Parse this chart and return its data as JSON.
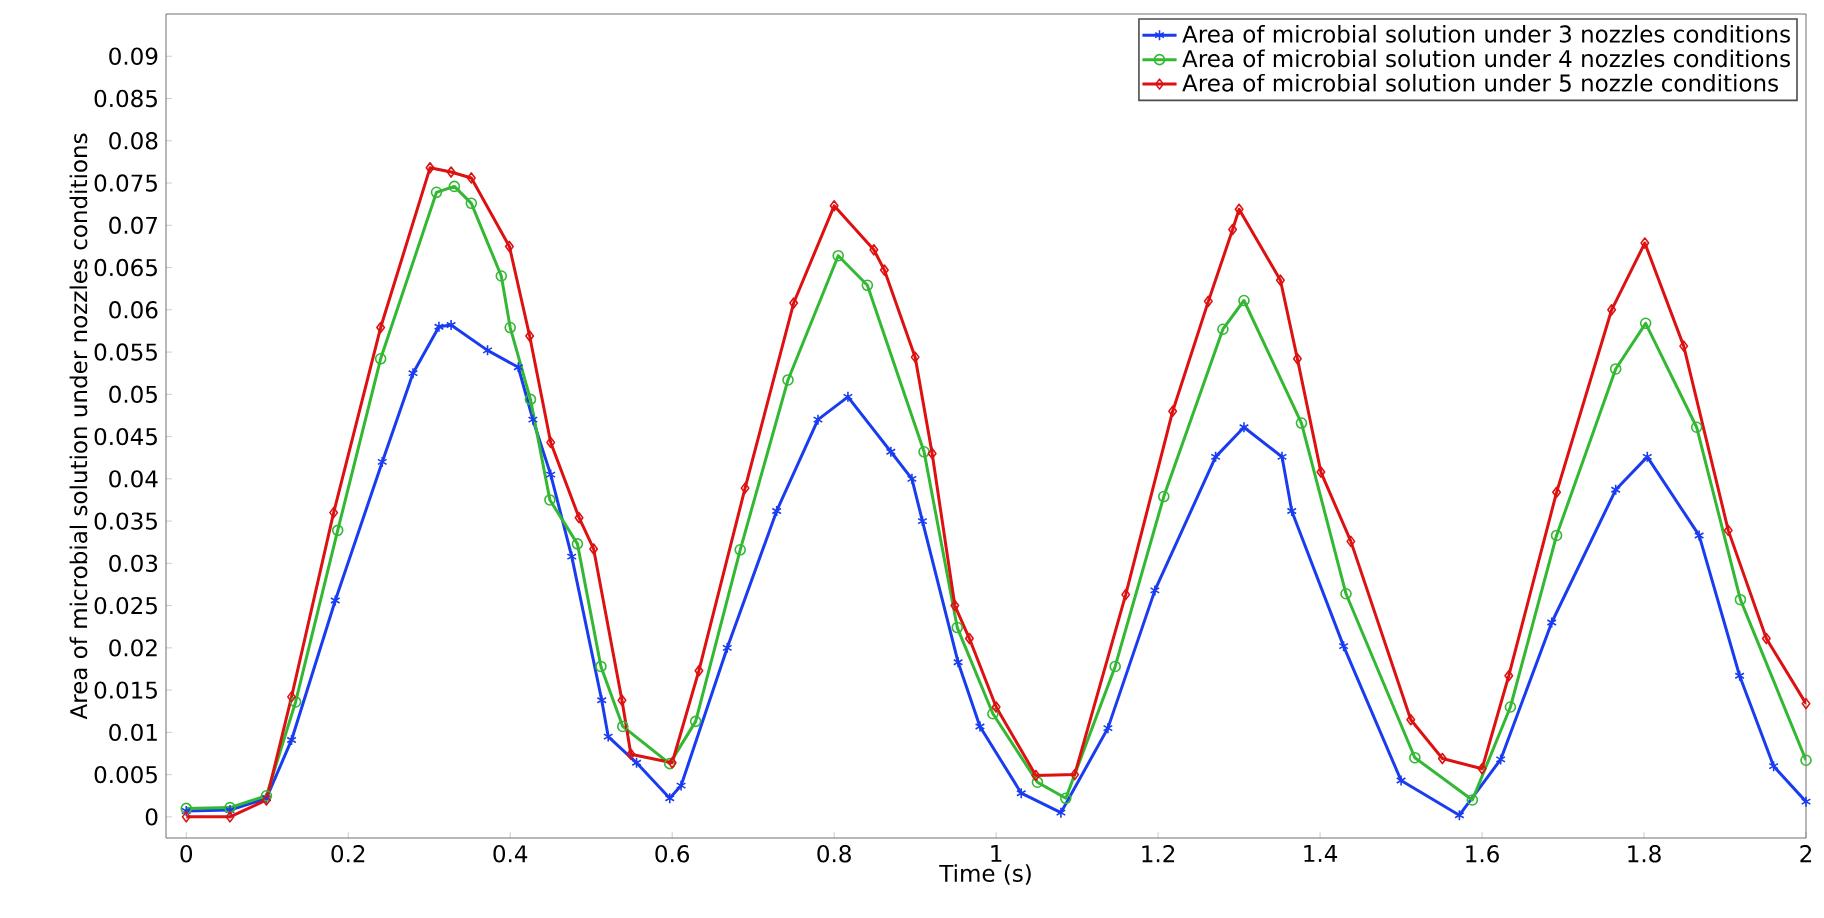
{
  "chart_data": {
    "type": "line",
    "xlabel": "Time (s)",
    "ylabel": "Area of microbial solution under  nozzles conditions",
    "xlim": [
      -0.025,
      2.0
    ],
    "ylim": [
      -0.0025,
      0.095
    ],
    "xticks": [
      0,
      0.2,
      0.4,
      0.6,
      0.8,
      1,
      1.2,
      1.4,
      1.6,
      1.8,
      2
    ],
    "yticks": [
      0,
      0.005,
      0.01,
      0.015,
      0.02,
      0.025,
      0.03,
      0.035,
      0.04,
      0.045,
      0.05,
      0.055,
      0.06,
      0.065,
      0.07,
      0.075,
      0.08,
      0.085,
      0.09
    ],
    "legend": "top right",
    "grid": false,
    "line_style": "solid",
    "series": [
      {
        "name": "Area of microbial solution under 3 nozzles conditions",
        "color": "#1a3cf0",
        "marker": "cross",
        "x": [
          0,
          0.054,
          0.099,
          0.13,
          0.184,
          0.242,
          0.28,
          0.312,
          0.327,
          0.372,
          0.41,
          0.428,
          0.45,
          0.476,
          0.513,
          0.521,
          0.556,
          0.597,
          0.611,
          0.668,
          0.729,
          0.78,
          0.817,
          0.87,
          0.896,
          0.909,
          0.953,
          0.98,
          1.031,
          1.08,
          1.138,
          1.196,
          1.271,
          1.306,
          1.353,
          1.365,
          1.429,
          1.5,
          1.572,
          1.623,
          1.686,
          1.765,
          1.804,
          1.868,
          1.918,
          1.96,
          2.0
        ],
        "values": [
          0.0007,
          0.0008,
          0.0022,
          0.0091,
          0.0256,
          0.042,
          0.0525,
          0.058,
          0.0582,
          0.0552,
          0.0532,
          0.047,
          0.0405,
          0.0308,
          0.0138,
          0.0095,
          0.0064,
          0.0022,
          0.0037,
          0.02,
          0.0362,
          0.047,
          0.0497,
          0.0432,
          0.04,
          0.035,
          0.0183,
          0.0107,
          0.0028,
          0.0005,
          0.0105,
          0.0268,
          0.0426,
          0.0461,
          0.0426,
          0.0362,
          0.0202,
          0.0043,
          0.0002,
          0.0068,
          0.023,
          0.0387,
          0.0426,
          0.0333,
          0.0167,
          0.006,
          0.0018
        ]
      },
      {
        "name": "Area of microbial solution under 4 nozzles conditions",
        "color": "#33b833",
        "marker": "circle",
        "x": [
          0,
          0.054,
          0.099,
          0.135,
          0.187,
          0.24,
          0.309,
          0.331,
          0.352,
          0.389,
          0.4,
          0.425,
          0.449,
          0.483,
          0.512,
          0.539,
          0.597,
          0.629,
          0.684,
          0.743,
          0.805,
          0.841,
          0.911,
          0.952,
          0.996,
          1.051,
          1.086,
          1.147,
          1.207,
          1.28,
          1.306,
          1.377,
          1.432,
          1.517,
          1.588,
          1.635,
          1.692,
          1.765,
          1.802,
          1.865,
          1.919,
          2.0
        ],
        "values": [
          0.001,
          0.0011,
          0.0025,
          0.0136,
          0.0339,
          0.0542,
          0.0739,
          0.0746,
          0.0726,
          0.064,
          0.0579,
          0.0494,
          0.0375,
          0.0323,
          0.0178,
          0.0107,
          0.0063,
          0.0113,
          0.0316,
          0.0517,
          0.0664,
          0.0629,
          0.0432,
          0.0224,
          0.0122,
          0.0041,
          0.0022,
          0.0178,
          0.0379,
          0.0577,
          0.0611,
          0.0466,
          0.0264,
          0.007,
          0.002,
          0.013,
          0.0333,
          0.053,
          0.0584,
          0.0461,
          0.0257,
          0.0067
        ]
      },
      {
        "name": "Area of microbial solution under 5 nozzle conditions",
        "color": "#dd1111",
        "marker": "diamond",
        "x": [
          0,
          0.054,
          0.099,
          0.13,
          0.182,
          0.24,
          0.301,
          0.327,
          0.352,
          0.399,
          0.424,
          0.45,
          0.485,
          0.503,
          0.538,
          0.549,
          0.6,
          0.633,
          0.69,
          0.75,
          0.8,
          0.849,
          0.862,
          0.9,
          0.921,
          0.949,
          0.967,
          1.0,
          1.049,
          1.097,
          1.16,
          1.218,
          1.262,
          1.292,
          1.3,
          1.351,
          1.372,
          1.401,
          1.438,
          1.512,
          1.551,
          1.6,
          1.633,
          1.692,
          1.76,
          1.801,
          1.849,
          1.904,
          1.951,
          2.0
        ],
        "values": [
          0,
          0,
          0.002,
          0.0142,
          0.036,
          0.0579,
          0.0768,
          0.0763,
          0.0756,
          0.0675,
          0.0569,
          0.0443,
          0.0354,
          0.0317,
          0.0138,
          0.0074,
          0.0064,
          0.0173,
          0.0389,
          0.0608,
          0.0723,
          0.0671,
          0.0647,
          0.0544,
          0.043,
          0.025,
          0.0211,
          0.013,
          0.0049,
          0.005,
          0.0263,
          0.048,
          0.061,
          0.0695,
          0.0719,
          0.0635,
          0.0542,
          0.0408,
          0.0326,
          0.0115,
          0.0069,
          0.0057,
          0.0167,
          0.0384,
          0.06,
          0.0679,
          0.0557,
          0.0339,
          0.0211,
          0.0134
        ]
      }
    ]
  }
}
